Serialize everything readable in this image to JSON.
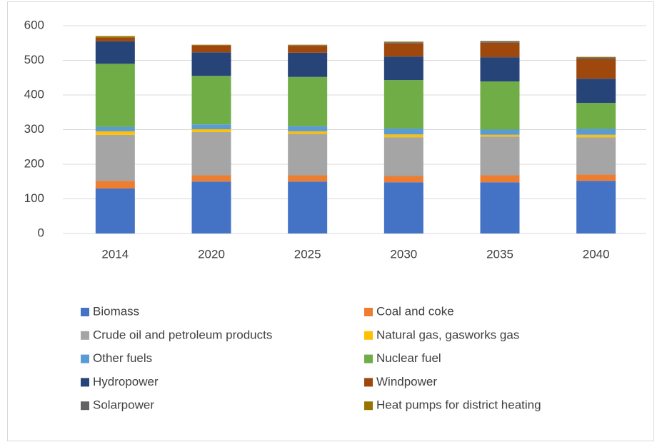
{
  "chart_data": {
    "type": "stacked_bar",
    "categories": [
      "2014",
      "2020",
      "2025",
      "2030",
      "2035",
      "2040"
    ],
    "series": [
      {
        "name": "Biomass",
        "color": "#4472c4",
        "values": [
          130,
          150,
          150,
          148,
          148,
          152
        ]
      },
      {
        "name": "Coal and coke",
        "color": "#ed7d31",
        "values": [
          22,
          18,
          18,
          18,
          20,
          18
        ]
      },
      {
        "name": "Crude oil and petroleum products",
        "color": "#a5a5a5",
        "values": [
          133,
          125,
          120,
          112,
          112,
          108
        ]
      },
      {
        "name": "Natural gas, gasworks gas",
        "color": "#ffc000",
        "values": [
          10,
          8,
          7,
          8,
          5,
          7
        ]
      },
      {
        "name": "Other fuels",
        "color": "#5b9bd5",
        "values": [
          13,
          14,
          15,
          17,
          15,
          17
        ]
      },
      {
        "name": "Nuclear fuel",
        "color": "#70ad47",
        "values": [
          182,
          140,
          142,
          140,
          139,
          75
        ]
      },
      {
        "name": "Hydropower",
        "color": "#264478",
        "values": [
          65,
          68,
          70,
          68,
          70,
          70
        ]
      },
      {
        "name": "Windpower",
        "color": "#9e480e",
        "values": [
          10,
          20,
          20,
          38,
          42,
          57
        ]
      },
      {
        "name": "Solarpower",
        "color": "#636363",
        "values": [
          0,
          0,
          1,
          3,
          4,
          4
        ]
      },
      {
        "name": "Heat pumps for district heating",
        "color": "#997300",
        "values": [
          5,
          2,
          2,
          2,
          1,
          2
        ]
      }
    ],
    "ylim": [
      0,
      600
    ],
    "yticks": [
      0,
      100,
      200,
      300,
      400,
      500,
      600
    ],
    "grid": true
  }
}
